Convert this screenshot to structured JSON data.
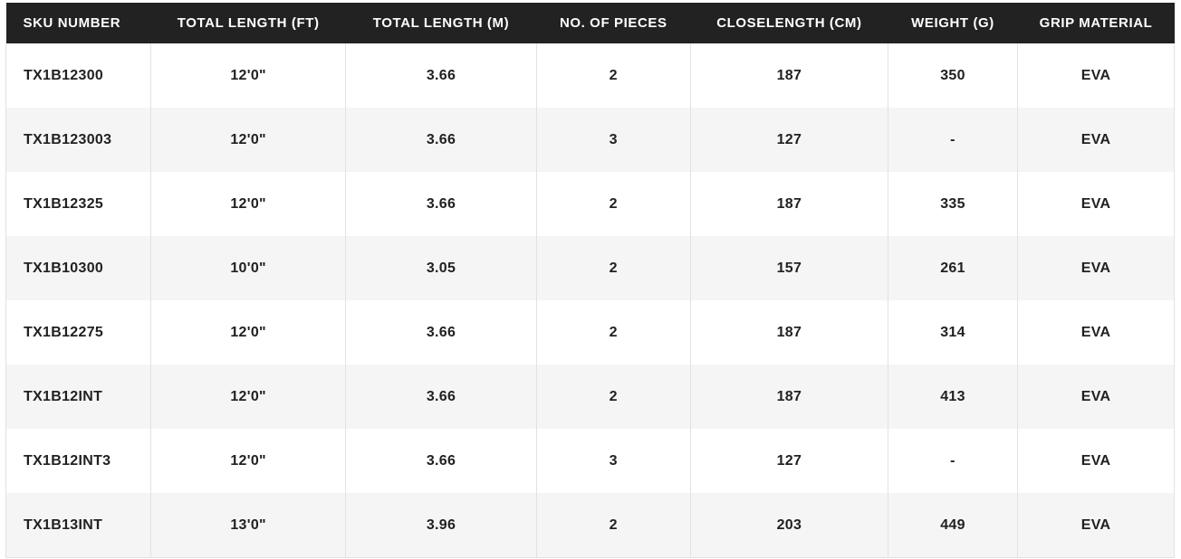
{
  "colors": {
    "header_bg": "#222222",
    "header_text": "#ffffff",
    "body_text": "#212121",
    "alt_row_bg": "#f5f5f5",
    "border": "#e2e2e2"
  },
  "table": {
    "columns": [
      "SKU NUMBER",
      "TOTAL LENGTH (FT)",
      "TOTAL LENGTH (M)",
      "NO. OF PIECES",
      "CLOSELENGTH (CM)",
      "WEIGHT (G)",
      "GRIP MATERIAL"
    ],
    "column_widths_pct": [
      12.4,
      16.7,
      16.3,
      13.2,
      16.9,
      11.1,
      13.4
    ],
    "rows": [
      [
        "TX1B12300",
        "12'0\"",
        "3.66",
        "2",
        "187",
        "350",
        "EVA"
      ],
      [
        "TX1B123003",
        "12'0\"",
        "3.66",
        "3",
        "127",
        "-",
        "EVA"
      ],
      [
        "TX1B12325",
        "12'0\"",
        "3.66",
        "2",
        "187",
        "335",
        "EVA"
      ],
      [
        "TX1B10300",
        "10'0\"",
        "3.05",
        "2",
        "157",
        "261",
        "EVA"
      ],
      [
        "TX1B12275",
        "12'0\"",
        "3.66",
        "2",
        "187",
        "314",
        "EVA"
      ],
      [
        "TX1B12INT",
        "12'0\"",
        "3.66",
        "2",
        "187",
        "413",
        "EVA"
      ],
      [
        "TX1B12INT3",
        "12'0\"",
        "3.66",
        "3",
        "127",
        "-",
        "EVA"
      ],
      [
        "TX1B13INT",
        "13'0\"",
        "3.96",
        "2",
        "203",
        "449",
        "EVA"
      ]
    ]
  },
  "chart_data": {
    "type": "table",
    "title": "Rod specification table",
    "columns": [
      "SKU NUMBER",
      "TOTAL LENGTH (FT)",
      "TOTAL LENGTH (M)",
      "NO. OF PIECES",
      "CLOSELENGTH (CM)",
      "WEIGHT (G)",
      "GRIP MATERIAL"
    ],
    "rows": [
      [
        "TX1B12300",
        "12'0\"",
        3.66,
        2,
        187,
        350,
        "EVA"
      ],
      [
        "TX1B123003",
        "12'0\"",
        3.66,
        3,
        127,
        null,
        "EVA"
      ],
      [
        "TX1B12325",
        "12'0\"",
        3.66,
        2,
        187,
        335,
        "EVA"
      ],
      [
        "TX1B10300",
        "10'0\"",
        3.05,
        2,
        157,
        261,
        "EVA"
      ],
      [
        "TX1B12275",
        "12'0\"",
        3.66,
        2,
        187,
        314,
        "EVA"
      ],
      [
        "TX1B12INT",
        "12'0\"",
        3.66,
        2,
        187,
        413,
        "EVA"
      ],
      [
        "TX1B12INT3",
        "12'0\"",
        3.66,
        3,
        127,
        null,
        "EVA"
      ],
      [
        "TX1B13INT",
        "13'0\"",
        3.96,
        2,
        203,
        449,
        "EVA"
      ]
    ]
  }
}
